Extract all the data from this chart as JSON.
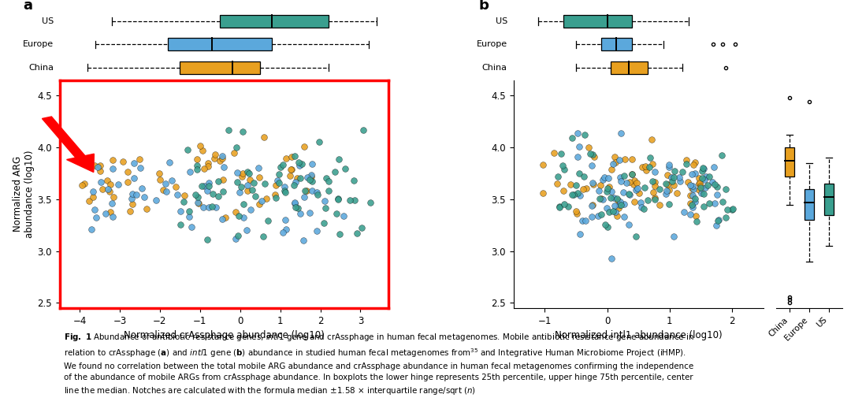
{
  "colors": {
    "US": "#3A9F8F",
    "Europe": "#5BA8DC",
    "China": "#E8A020"
  },
  "scatter_a": {
    "xlim": [
      -4.5,
      3.7
    ],
    "ylim": [
      2.45,
      4.65
    ],
    "xlabel": "Normalized crAssphage abundance (log10)",
    "ylabel": "Normalized ARG\nabundance (log10)",
    "xticks": [
      -4,
      -3,
      -2,
      -1,
      0,
      1,
      2,
      3
    ],
    "yticks": [
      2.5,
      3.0,
      3.5,
      4.0,
      4.5
    ]
  },
  "scatter_b": {
    "xlim": [
      -1.5,
      2.5
    ],
    "ylim": [
      2.45,
      4.65
    ],
    "xlabel": "Normalized intl1 abundance (log10)",
    "xticks": [
      -1,
      0,
      1,
      2
    ],
    "yticks": [
      2.5,
      3.0,
      3.5,
      4.0,
      4.5
    ]
  },
  "boxplot_top_a": {
    "US": {
      "q1": -0.5,
      "med": 0.8,
      "q3": 2.2,
      "wlo": -3.2,
      "whi": 3.4
    },
    "Europe": {
      "q1": -1.8,
      "med": -0.7,
      "q3": 0.8,
      "wlo": -3.6,
      "whi": 3.2
    },
    "China": {
      "q1": -1.5,
      "med": -0.2,
      "q3": 0.5,
      "wlo": -3.8,
      "whi": 2.2
    }
  },
  "boxplot_top_b": {
    "US": {
      "q1": -0.7,
      "med": 0.0,
      "q3": 0.4,
      "wlo": -1.1,
      "whi": 1.3,
      "outliers": []
    },
    "Europe": {
      "q1": -0.1,
      "med": 0.15,
      "q3": 0.4,
      "wlo": -0.5,
      "whi": 0.9,
      "outliers": [
        1.7,
        1.85,
        2.05
      ]
    },
    "China": {
      "q1": 0.05,
      "med": 0.35,
      "q3": 0.65,
      "wlo": -0.5,
      "whi": 1.2,
      "outliers": [
        1.9
      ]
    }
  },
  "boxplot_right_b": {
    "China": {
      "q1": 3.72,
      "med": 3.87,
      "q3": 4.0,
      "wlo": 3.45,
      "whi": 4.12,
      "outliers": [
        4.48,
        2.5,
        2.53,
        2.56
      ]
    },
    "Europe": {
      "q1": 3.3,
      "med": 3.47,
      "q3": 3.6,
      "wlo": 2.9,
      "whi": 3.85,
      "outliers": [
        4.44
      ]
    },
    "US": {
      "q1": 3.35,
      "med": 3.52,
      "q3": 3.65,
      "wlo": 3.05,
      "whi": 3.9,
      "outliers": []
    }
  }
}
